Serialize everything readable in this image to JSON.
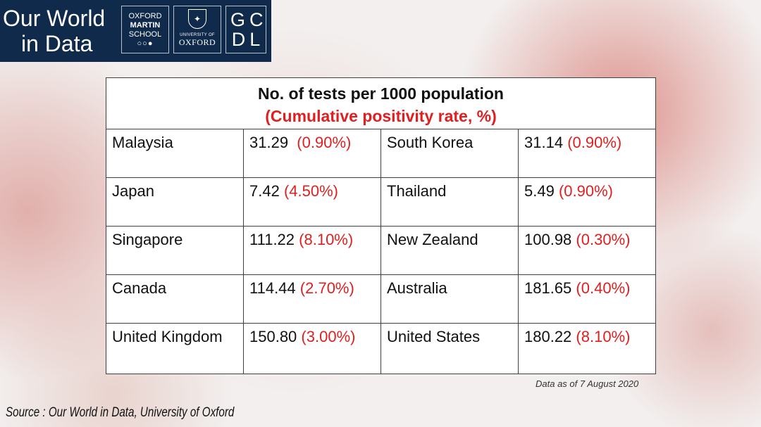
{
  "header": {
    "owid_line1": "Our World",
    "owid_line2": "in Data",
    "oxford_martin": {
      "line1": "OXFORD",
      "line2": "MARTIN",
      "line3": "SCHOOL"
    },
    "oxford_uni": {
      "small": "UNIVERSITY OF",
      "name": "OXFORD"
    },
    "gcdl": {
      "line1": "GC",
      "line2": "DL"
    },
    "brand_color": "#0f2a4a"
  },
  "table": {
    "title": "No. of tests per 1000 population",
    "subtitle": "(Cumulative positivity rate, %)",
    "rows": [
      {
        "c1": "Malaysia",
        "c1v": "31.29",
        "c1r": "(0.90%)",
        "c2": "South Korea",
        "c2v": "31.14",
        "c2r": "(0.90%)"
      },
      {
        "c1": "Japan",
        "c1v": "7.42",
        "c1r": "(4.50%)",
        "c2": "Thailand",
        "c2v": "5.49",
        "c2r": "(0.90%)"
      },
      {
        "c1": "Singapore",
        "c1v": "111.22",
        "c1r": "(8.10%)",
        "c2": "New Zealand",
        "c2v": "100.98",
        "c2r": "(0.30%)"
      },
      {
        "c1": "Canada",
        "c1v": "114.44",
        "c1r": "(2.70%)",
        "c2": "Australia",
        "c2v": "181.65",
        "c2r": "(0.40%)"
      },
      {
        "c1": "United Kingdom",
        "c1v": "150.80",
        "c1r": "(3.00%)",
        "c2": "United States",
        "c2v": "180.22",
        "c2r": "(8.10%)"
      }
    ],
    "accent_color": "#e02020"
  },
  "footer": {
    "data_as_of": "Data as of 7 August 2020",
    "source": "Source : Our World in Data, University  of Oxford"
  }
}
